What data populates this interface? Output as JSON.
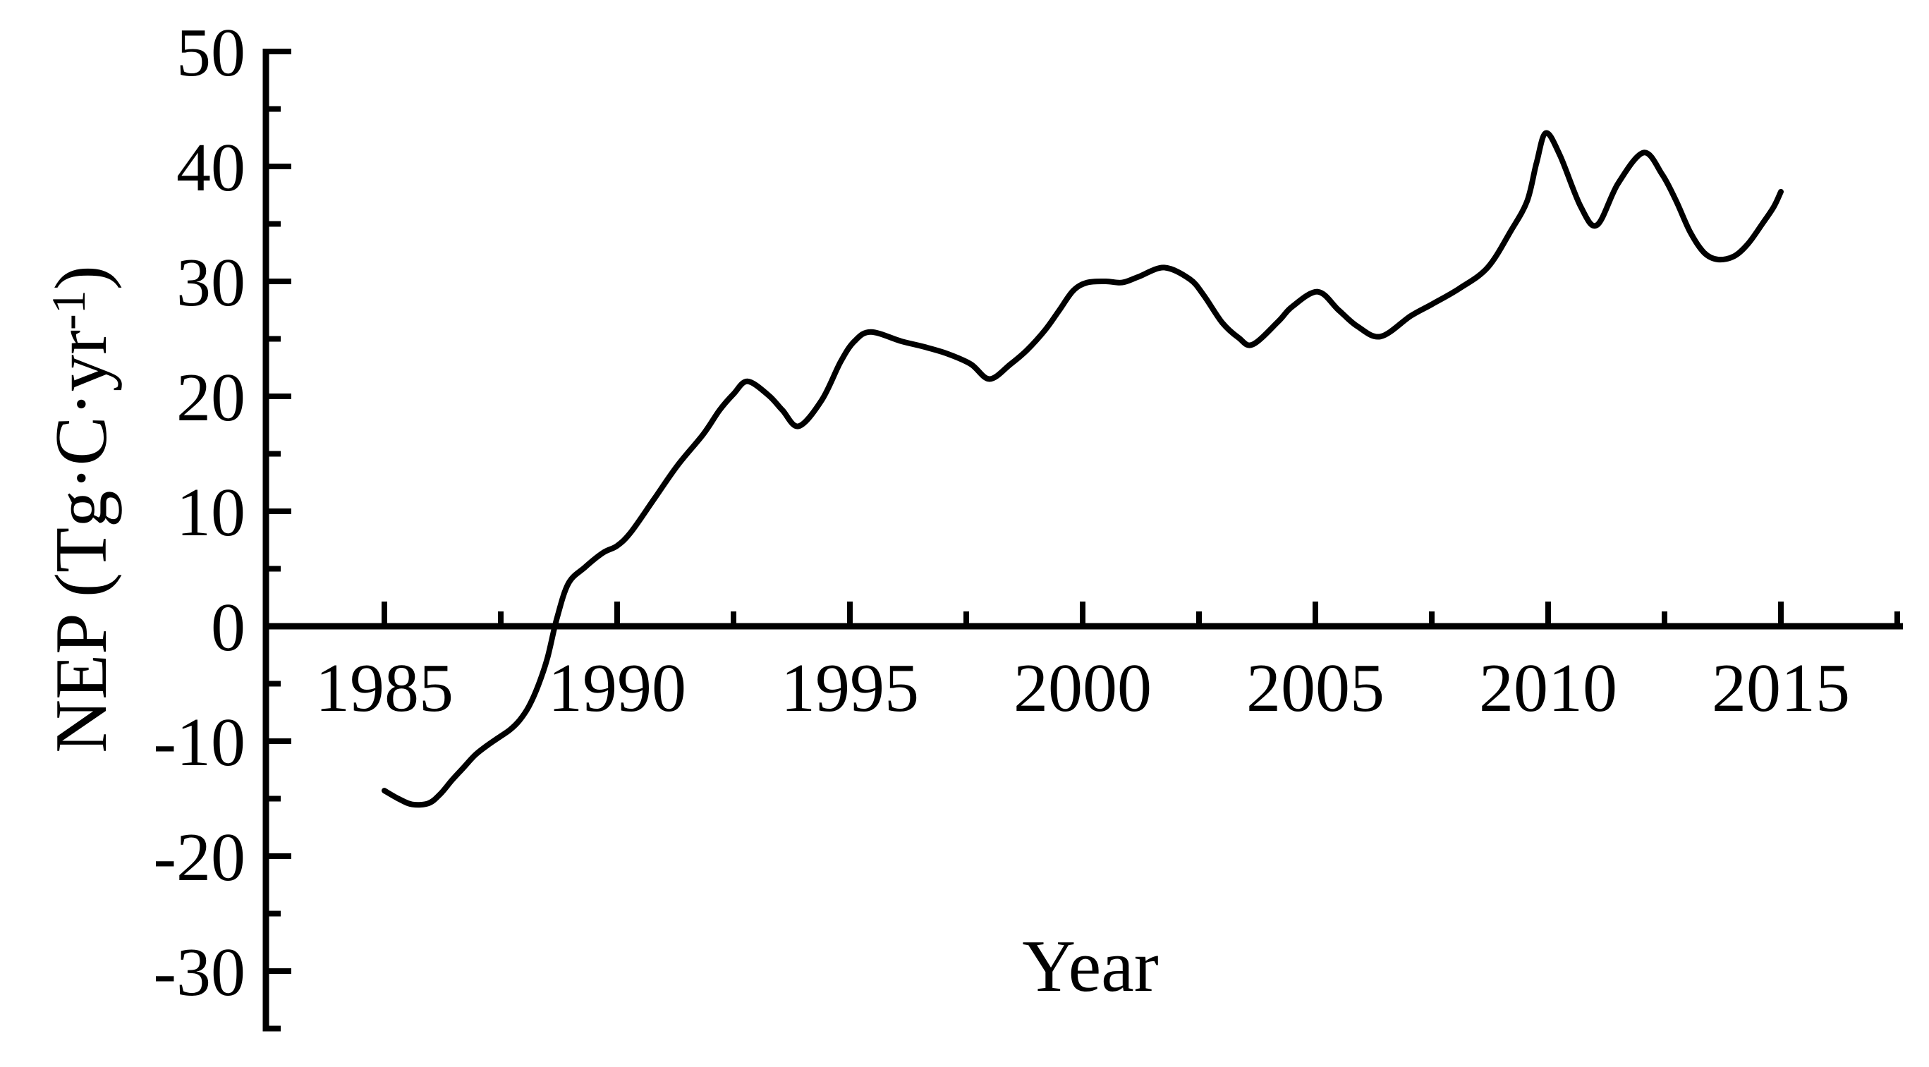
{
  "figure": {
    "background_color": "#ffffff",
    "line_color": "#000000",
    "axis_color": "#000000"
  },
  "labels": {
    "x_axis_title": "Year",
    "y_axis_title_prefix": "NEP (Tg·C·yr",
    "y_axis_title_superscript": "-1",
    "y_axis_title_suffix": ")"
  },
  "chart_data": {
    "type": "line",
    "title": "",
    "xlabel": "Year",
    "ylabel": "NEP (Tg·C·yr-1)",
    "xlim": [
      1982.4,
      2017.65
    ],
    "ylim": [
      -35.2,
      50
    ],
    "grid": false,
    "legend": "none",
    "x_ticks_major": [
      1985,
      1990,
      1995,
      2000,
      2005,
      2010,
      2015
    ],
    "x_tick_labels": [
      "1985",
      "1990",
      "1995",
      "2000",
      "2005",
      "2010",
      "2015"
    ],
    "x_ticks_minor": [
      1987.5,
      1992.5,
      1997.5,
      2002.5,
      2007.5,
      2012.5,
      2017.5
    ],
    "y_ticks_major": [
      50,
      40,
      30,
      20,
      10,
      0,
      -10,
      -20,
      -30
    ],
    "y_tick_labels": [
      "50",
      "40",
      "30",
      "20",
      "10",
      "0",
      "-10",
      "-20",
      "-30"
    ],
    "y_ticks_minor": [
      45,
      35,
      25,
      15,
      5,
      -5,
      -15,
      -25,
      -35
    ],
    "series": [
      {
        "name": "NEP",
        "points": [
          [
            1985.0,
            -14.3
          ],
          [
            1985.3,
            -15.0
          ],
          [
            1985.6,
            -15.5
          ],
          [
            1985.95,
            -15.4
          ],
          [
            1986.2,
            -14.6
          ],
          [
            1986.45,
            -13.4
          ],
          [
            1986.7,
            -12.3
          ],
          [
            1986.95,
            -11.2
          ],
          [
            1987.2,
            -10.4
          ],
          [
            1987.45,
            -9.7
          ],
          [
            1987.7,
            -9.0
          ],
          [
            1987.9,
            -8.2
          ],
          [
            1988.1,
            -7.0
          ],
          [
            1988.3,
            -5.2
          ],
          [
            1988.5,
            -2.8
          ],
          [
            1988.7,
            0.6
          ],
          [
            1988.95,
            3.7
          ],
          [
            1989.3,
            5.1
          ],
          [
            1989.7,
            6.4
          ],
          [
            1990.0,
            7.0
          ],
          [
            1990.3,
            8.2
          ],
          [
            1990.8,
            11.1
          ],
          [
            1991.3,
            14.0
          ],
          [
            1991.85,
            16.7
          ],
          [
            1992.2,
            18.8
          ],
          [
            1992.5,
            20.2
          ],
          [
            1992.8,
            21.3
          ],
          [
            1993.25,
            20.1
          ],
          [
            1993.55,
            18.8
          ],
          [
            1993.9,
            17.4
          ],
          [
            1994.4,
            19.7
          ],
          [
            1994.8,
            23.0
          ],
          [
            1995.1,
            24.8
          ],
          [
            1995.45,
            25.6
          ],
          [
            1996.1,
            24.8
          ],
          [
            1996.6,
            24.3
          ],
          [
            1997.1,
            23.7
          ],
          [
            1997.6,
            22.8
          ],
          [
            1998.0,
            21.5
          ],
          [
            1998.45,
            22.8
          ],
          [
            1998.8,
            24.0
          ],
          [
            1999.2,
            25.8
          ],
          [
            1999.5,
            27.5
          ],
          [
            1999.8,
            29.2
          ],
          [
            2000.1,
            29.9
          ],
          [
            2000.5,
            30.0
          ],
          [
            2000.85,
            29.9
          ],
          [
            2001.2,
            30.4
          ],
          [
            2001.75,
            31.2
          ],
          [
            2002.3,
            30.2
          ],
          [
            2002.6,
            28.8
          ],
          [
            2003.0,
            26.4
          ],
          [
            2003.35,
            25.1
          ],
          [
            2003.65,
            24.5
          ],
          [
            2004.2,
            26.5
          ],
          [
            2004.5,
            27.8
          ],
          [
            2005.05,
            29.1
          ],
          [
            2005.5,
            27.5
          ],
          [
            2005.9,
            26.1
          ],
          [
            2006.4,
            25.2
          ],
          [
            2007.05,
            27.0
          ],
          [
            2007.5,
            28.0
          ],
          [
            2008.1,
            29.4
          ],
          [
            2008.7,
            31.2
          ],
          [
            2009.2,
            34.4
          ],
          [
            2009.55,
            37.0
          ],
          [
            2009.75,
            40.3
          ],
          [
            2009.95,
            42.9
          ],
          [
            2010.25,
            41.0
          ],
          [
            2010.7,
            36.5
          ],
          [
            2011.05,
            34.9
          ],
          [
            2011.5,
            38.5
          ],
          [
            2012.05,
            41.2
          ],
          [
            2012.45,
            39.3
          ],
          [
            2012.75,
            37.0
          ],
          [
            2013.05,
            34.3
          ],
          [
            2013.35,
            32.5
          ],
          [
            2013.65,
            31.9
          ],
          [
            2014.0,
            32.2
          ],
          [
            2014.3,
            33.3
          ],
          [
            2014.6,
            35.0
          ],
          [
            2014.85,
            36.5
          ],
          [
            2015.0,
            37.8
          ]
        ]
      }
    ]
  }
}
